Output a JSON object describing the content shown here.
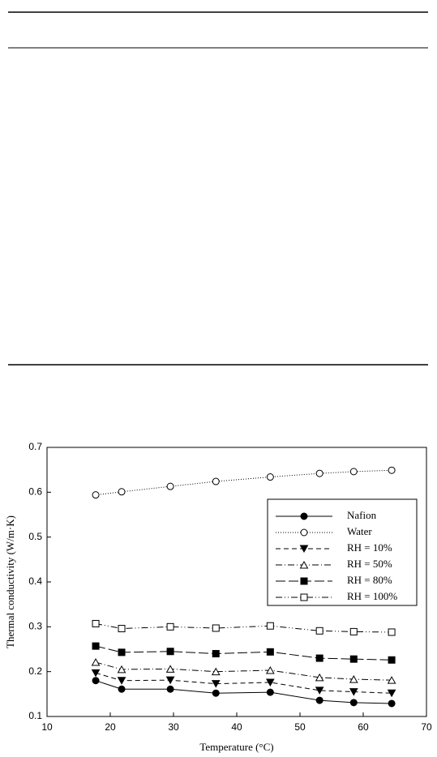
{
  "chart_data": {
    "type": "line",
    "xlabel": "Temperature (°C)",
    "ylabel": "Thermal  conductivity (W/m·K)",
    "x": [
      17.7,
      21.8,
      29.5,
      36.7,
      45.3,
      53.1,
      58.5,
      64.5
    ],
    "series": [
      {
        "name": "Nafion",
        "color": "#000000",
        "dash": "",
        "marker": "circle",
        "filled": true,
        "values": [
          0.18,
          0.161,
          0.161,
          0.152,
          0.154,
          0.136,
          0.131,
          0.129
        ]
      },
      {
        "name": "Water",
        "color": "#000000",
        "dash": "1,2",
        "marker": "circle",
        "filled": false,
        "values": [
          0.594,
          0.601,
          0.613,
          0.624,
          0.634,
          0.642,
          0.646,
          0.649
        ]
      },
      {
        "name": "RH = 10%",
        "color": "#000000",
        "dash": "6,4",
        "marker": "triangle-down",
        "filled": true,
        "values": [
          0.197,
          0.18,
          0.181,
          0.173,
          0.176,
          0.158,
          0.155,
          0.152
        ]
      },
      {
        "name": "RH = 50%",
        "color": "#000000",
        "dash": "8,3,1,3",
        "marker": "triangle-up",
        "filled": false,
        "values": [
          0.221,
          0.205,
          0.206,
          0.2,
          0.203,
          0.187,
          0.183,
          0.181
        ]
      },
      {
        "name": "RH = 80%",
        "color": "#000000",
        "dash": "12,4",
        "marker": "square",
        "filled": true,
        "values": [
          0.257,
          0.243,
          0.245,
          0.24,
          0.244,
          0.23,
          0.228,
          0.226
        ]
      },
      {
        "name": "RH = 100%",
        "color": "#000000",
        "dash": "8,3,1,3,1,3",
        "marker": "square",
        "filled": false,
        "values": [
          0.307,
          0.296,
          0.3,
          0.297,
          0.302,
          0.291,
          0.289,
          0.288
        ]
      }
    ],
    "xlim": [
      10,
      70
    ],
    "xticks": [
      10,
      20,
      30,
      40,
      50,
      60,
      70
    ],
    "ylim": [
      0.1,
      0.7
    ],
    "yticks": [
      0.1,
      0.2,
      0.3,
      0.4,
      0.5,
      0.6,
      0.7
    ],
    "grid": false
  }
}
